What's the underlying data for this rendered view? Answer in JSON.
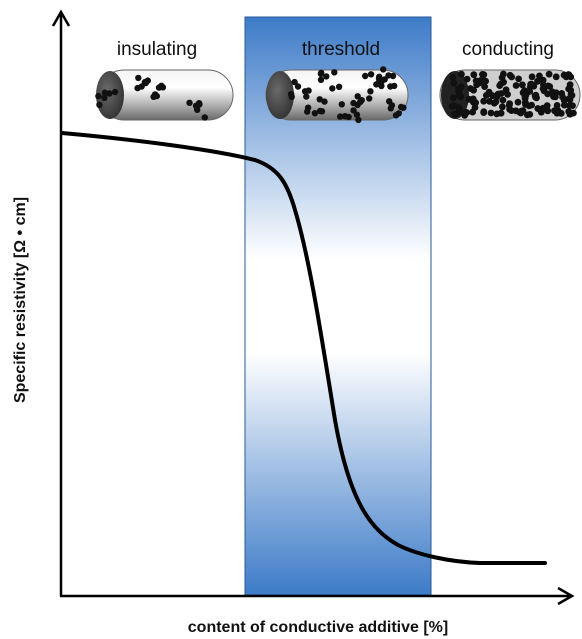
{
  "regions": {
    "insulating": "insulating",
    "threshold": "threshold",
    "conducting": "conducting"
  },
  "axes": {
    "y_label": "Specific resistivity [Ω • cm]",
    "x_label": "content of conductive additive [%]"
  },
  "colors": {
    "band_top": "#3d7bc8",
    "band_bottom": "#ffffff",
    "curve": "#000000",
    "particle": "#111111"
  }
}
